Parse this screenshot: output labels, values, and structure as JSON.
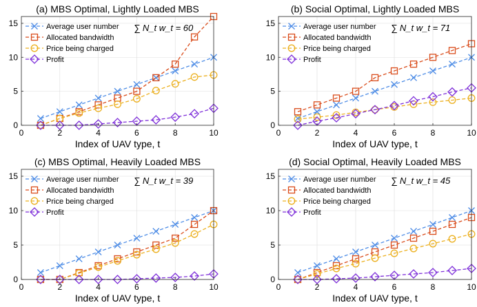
{
  "chart_data": [
    {
      "type": "line",
      "title": "(a) MBS Optimal, Lightly Loaded MBS",
      "xlabel": "Index of UAV type, t",
      "ylabel": "",
      "xlim": [
        0,
        10
      ],
      "ylim": [
        0,
        16
      ],
      "xticks": [
        0,
        2,
        4,
        6,
        8,
        10
      ],
      "yticks": [
        0,
        5,
        10,
        15
      ],
      "grid": true,
      "legend_position": "top-left",
      "annotation": "∑ N_t w_t = 60",
      "x": [
        1,
        2,
        3,
        4,
        5,
        6,
        7,
        8,
        9,
        10
      ],
      "series": [
        {
          "name": "Average user number",
          "values": [
            1,
            2,
            3,
            4,
            5,
            6,
            7,
            8,
            9,
            10
          ]
        },
        {
          "name": "Allocated bandwidth",
          "values": [
            0,
            1,
            2,
            3,
            4,
            5,
            7,
            9,
            13,
            16
          ]
        },
        {
          "name": "Price being charged",
          "values": [
            0,
            1,
            1.8,
            2.5,
            3.1,
            3.9,
            5.1,
            6.1,
            7.1,
            7.4
          ]
        },
        {
          "name": "Profit",
          "values": [
            0,
            0,
            0,
            0.2,
            0.4,
            0.6,
            0.8,
            1.2,
            1.7,
            2.5
          ]
        }
      ]
    },
    {
      "type": "line",
      "title": "(b) Social Optimal, Lightly Loaded MBS",
      "xlabel": "Index of UAV type, t",
      "ylabel": "",
      "xlim": [
        0,
        10
      ],
      "ylim": [
        0,
        16
      ],
      "xticks": [
        0,
        2,
        4,
        6,
        8,
        10
      ],
      "yticks": [
        0,
        5,
        10,
        15
      ],
      "grid": true,
      "legend_position": "top-left",
      "annotation": "∑ N_t w_t = 71",
      "x": [
        1,
        2,
        3,
        4,
        5,
        6,
        7,
        8,
        9,
        10
      ],
      "series": [
        {
          "name": "Average user number",
          "values": [
            1,
            2,
            3,
            4,
            5,
            6,
            7,
            8,
            9,
            10
          ]
        },
        {
          "name": "Allocated bandwidth",
          "values": [
            2,
            3,
            4,
            5,
            7,
            8,
            9,
            10,
            11,
            12
          ]
        },
        {
          "name": "Price being charged",
          "values": [
            0.9,
            1.2,
            1.5,
            1.9,
            2.3,
            2.7,
            3.1,
            3.4,
            3.7,
            4.0
          ]
        },
        {
          "name": "Profit",
          "values": [
            0,
            0.6,
            1.1,
            1.7,
            2.3,
            2.9,
            3.6,
            4.2,
            4.9,
            5.5
          ]
        }
      ]
    },
    {
      "type": "line",
      "title": "(c) MBS Optimal, Heavily Loaded MBS",
      "xlabel": "Index of UAV type, t",
      "ylabel": "",
      "xlim": [
        0,
        10
      ],
      "ylim": [
        0,
        16
      ],
      "xticks": [
        0,
        2,
        4,
        6,
        8,
        10
      ],
      "yticks": [
        0,
        5,
        10,
        15
      ],
      "grid": true,
      "legend_position": "top-left",
      "annotation": "∑ N_t w_t = 39",
      "x": [
        1,
        2,
        3,
        4,
        5,
        6,
        7,
        8,
        9,
        10
      ],
      "series": [
        {
          "name": "Average user number",
          "values": [
            1,
            2,
            3,
            4,
            5,
            6,
            7,
            8,
            9,
            10
          ]
        },
        {
          "name": "Allocated bandwidth",
          "values": [
            0,
            0,
            1,
            2,
            3,
            4,
            5,
            6,
            8,
            10
          ]
        },
        {
          "name": "Price being charged",
          "values": [
            0,
            0,
            0.9,
            1.8,
            2.7,
            3.6,
            4.4,
            5.3,
            6.6,
            8.0
          ]
        },
        {
          "name": "Profit",
          "values": [
            0,
            0,
            0,
            0,
            0,
            0.1,
            0.2,
            0.3,
            0.5,
            0.8
          ]
        }
      ]
    },
    {
      "type": "line",
      "title": "(d) Social Optimal, Heavily Loaded MBS",
      "xlabel": "Index of UAV type, t",
      "ylabel": "",
      "xlim": [
        0,
        10
      ],
      "ylim": [
        0,
        16
      ],
      "xticks": [
        0,
        2,
        4,
        6,
        8,
        10
      ],
      "yticks": [
        0,
        5,
        10,
        15
      ],
      "grid": true,
      "legend_position": "top-left",
      "annotation": "∑ N_t w_t = 45",
      "x": [
        1,
        2,
        3,
        4,
        5,
        6,
        7,
        8,
        9,
        10
      ],
      "series": [
        {
          "name": "Average user number",
          "values": [
            1,
            2,
            3,
            4,
            5,
            6,
            7,
            8,
            9,
            10
          ]
        },
        {
          "name": "Allocated bandwidth",
          "values": [
            0,
            1,
            2,
            3,
            4,
            5,
            6,
            7,
            8,
            9
          ]
        },
        {
          "name": "Price being charged",
          "values": [
            0,
            0.8,
            1.6,
            2.3,
            3.1,
            3.8,
            4.5,
            5.2,
            5.9,
            6.6
          ]
        },
        {
          "name": "Profit",
          "values": [
            0,
            0,
            0.1,
            0.2,
            0.4,
            0.6,
            0.8,
            1.0,
            1.3,
            1.6
          ]
        }
      ]
    }
  ],
  "series_styles": [
    {
      "color": "#4d8ce6",
      "marker": "x"
    },
    {
      "color": "#d94b1a",
      "marker": "square"
    },
    {
      "color": "#ecb01f",
      "marker": "circle"
    },
    {
      "color": "#7e2fd9",
      "marker": "diamond"
    }
  ]
}
